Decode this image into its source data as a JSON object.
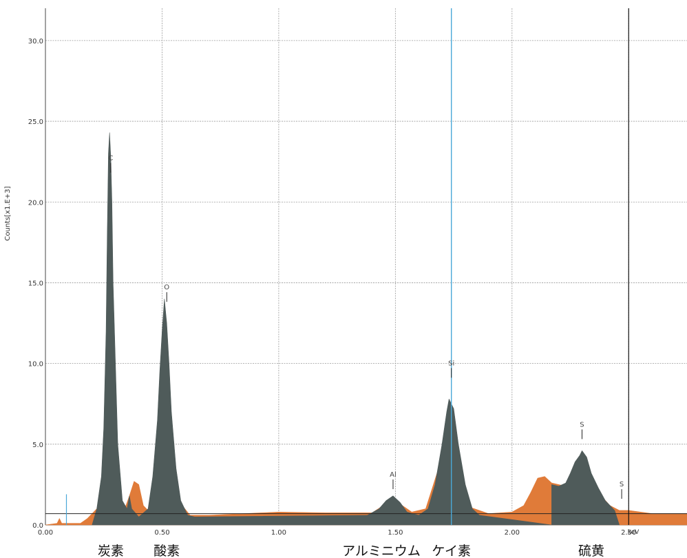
{
  "chart_data": {
    "type": "area",
    "title": "",
    "xlabel": "keV",
    "ylabel": "Counts[x1.E+3]",
    "xlim": [
      0.0,
      2.75
    ],
    "ylim": [
      0.0,
      32.0
    ],
    "x_ticks": [
      "0.00",
      "0.50",
      "1.00",
      "1.50",
      "2.00",
      "2.50"
    ],
    "y_ticks": [
      "0.0",
      "5.0",
      "10.0",
      "15.0",
      "20.0",
      "25.0",
      "30.0"
    ],
    "grid": true,
    "baseline_level": 0.7,
    "markers": [
      0.09,
      1.74,
      2.5
    ],
    "series": [
      {
        "color": "#e07b39",
        "points": [
          [
            0.0,
            0.0
          ],
          [
            0.05,
            0.1
          ],
          [
            0.06,
            0.4
          ],
          [
            0.07,
            0.1
          ],
          [
            0.15,
            0.1
          ],
          [
            0.18,
            0.4
          ],
          [
            0.2,
            0.7
          ],
          [
            0.22,
            1.0
          ],
          [
            0.25,
            2.0
          ],
          [
            0.27,
            6.0
          ],
          [
            0.28,
            12.0
          ],
          [
            0.29,
            4.0
          ],
          [
            0.31,
            1.0
          ],
          [
            0.34,
            1.0
          ],
          [
            0.36,
            1.8
          ],
          [
            0.38,
            2.7
          ],
          [
            0.4,
            2.5
          ],
          [
            0.42,
            1.2
          ],
          [
            0.44,
            0.9
          ],
          [
            0.47,
            2.0
          ],
          [
            0.5,
            8.0
          ],
          [
            0.51,
            10.0
          ],
          [
            0.53,
            6.0
          ],
          [
            0.57,
            1.5
          ],
          [
            0.62,
            0.6
          ],
          [
            0.7,
            0.6
          ],
          [
            1.0,
            0.8
          ],
          [
            1.2,
            0.75
          ],
          [
            1.4,
            0.75
          ],
          [
            1.49,
            1.6
          ],
          [
            1.57,
            0.8
          ],
          [
            1.63,
            1.0
          ],
          [
            1.74,
            6.0
          ],
          [
            1.8,
            1.2
          ],
          [
            1.9,
            0.7
          ],
          [
            2.0,
            0.8
          ],
          [
            2.05,
            1.2
          ],
          [
            2.08,
            2.0
          ],
          [
            2.11,
            2.9
          ],
          [
            2.14,
            3.0
          ],
          [
            2.17,
            2.6
          ],
          [
            2.2,
            2.5
          ],
          [
            2.23,
            2.4
          ],
          [
            2.25,
            2.9
          ],
          [
            2.28,
            3.5
          ],
          [
            2.3,
            4.3
          ],
          [
            2.33,
            3.5
          ],
          [
            2.37,
            2.0
          ],
          [
            2.42,
            1.2
          ],
          [
            2.46,
            0.9
          ],
          [
            2.5,
            0.9
          ],
          [
            2.6,
            0.7
          ],
          [
            2.75,
            0.7
          ]
        ]
      },
      {
        "color": "#4f5b5a",
        "points": [
          [
            0.2,
            0.0
          ],
          [
            0.22,
            1.0
          ],
          [
            0.24,
            3.0
          ],
          [
            0.25,
            6.0
          ],
          [
            0.26,
            12.0
          ],
          [
            0.265,
            18.0
          ],
          [
            0.27,
            23.0
          ],
          [
            0.275,
            24.3
          ],
          [
            0.28,
            22.8
          ],
          [
            0.285,
            20.0
          ],
          [
            0.29,
            15.0
          ],
          [
            0.3,
            10.0
          ],
          [
            0.31,
            5.0
          ],
          [
            0.33,
            1.5
          ],
          [
            0.35,
            1.0
          ],
          [
            0.36,
            1.8
          ],
          [
            0.37,
            1.0
          ],
          [
            0.4,
            0.5
          ],
          [
            0.44,
            1.0
          ],
          [
            0.46,
            3.0
          ],
          [
            0.48,
            6.5
          ],
          [
            0.49,
            9.5
          ],
          [
            0.5,
            12.0
          ],
          [
            0.51,
            14.0
          ],
          [
            0.52,
            12.5
          ],
          [
            0.53,
            10.0
          ],
          [
            0.54,
            7.0
          ],
          [
            0.56,
            3.5
          ],
          [
            0.58,
            1.5
          ],
          [
            0.61,
            0.6
          ],
          [
            0.64,
            0.5
          ],
          [
            1.38,
            0.6
          ],
          [
            1.43,
            1.0
          ],
          [
            1.46,
            1.5
          ],
          [
            1.49,
            1.8
          ],
          [
            1.52,
            1.4
          ],
          [
            1.55,
            0.8
          ],
          [
            1.6,
            0.6
          ],
          [
            1.64,
            1.0
          ],
          [
            1.67,
            2.5
          ],
          [
            1.7,
            5.0
          ],
          [
            1.72,
            7.0
          ],
          [
            1.73,
            7.8
          ],
          [
            1.75,
            7.2
          ],
          [
            1.77,
            5.0
          ],
          [
            1.8,
            2.5
          ],
          [
            1.83,
            1.0
          ],
          [
            1.86,
            0.6
          ],
          [
            2.17,
            0.0
          ],
          [
            2.17,
            2.5
          ],
          [
            2.2,
            2.4
          ],
          [
            2.23,
            2.6
          ],
          [
            2.25,
            3.2
          ],
          [
            2.27,
            3.9
          ],
          [
            2.29,
            4.3
          ],
          [
            2.3,
            4.6
          ],
          [
            2.32,
            4.2
          ],
          [
            2.34,
            3.2
          ],
          [
            2.37,
            2.3
          ],
          [
            2.4,
            1.5
          ],
          [
            2.44,
            0.9
          ],
          [
            2.46,
            0.0
          ]
        ]
      }
    ],
    "peak_labels": [
      {
        "x": 0.28,
        "y": 22.5,
        "text": "C"
      },
      {
        "x": 0.52,
        "y": 14.5,
        "text": "O"
      },
      {
        "x": 1.49,
        "y": 2.9,
        "text": "Al"
      },
      {
        "x": 1.74,
        "y": 9.8,
        "text": "Si"
      },
      {
        "x": 2.3,
        "y": 6.0,
        "text": "S"
      },
      {
        "x": 2.47,
        "y": 2.3,
        "text": "S"
      }
    ],
    "element_labels": [
      {
        "x": 0.28,
        "text": "炭素"
      },
      {
        "x": 0.52,
        "text": "酸素"
      },
      {
        "x": 1.44,
        "text": "アルミニウム"
      },
      {
        "x": 1.74,
        "text": "ケイ素"
      },
      {
        "x": 2.34,
        "text": "硫黄"
      }
    ]
  }
}
